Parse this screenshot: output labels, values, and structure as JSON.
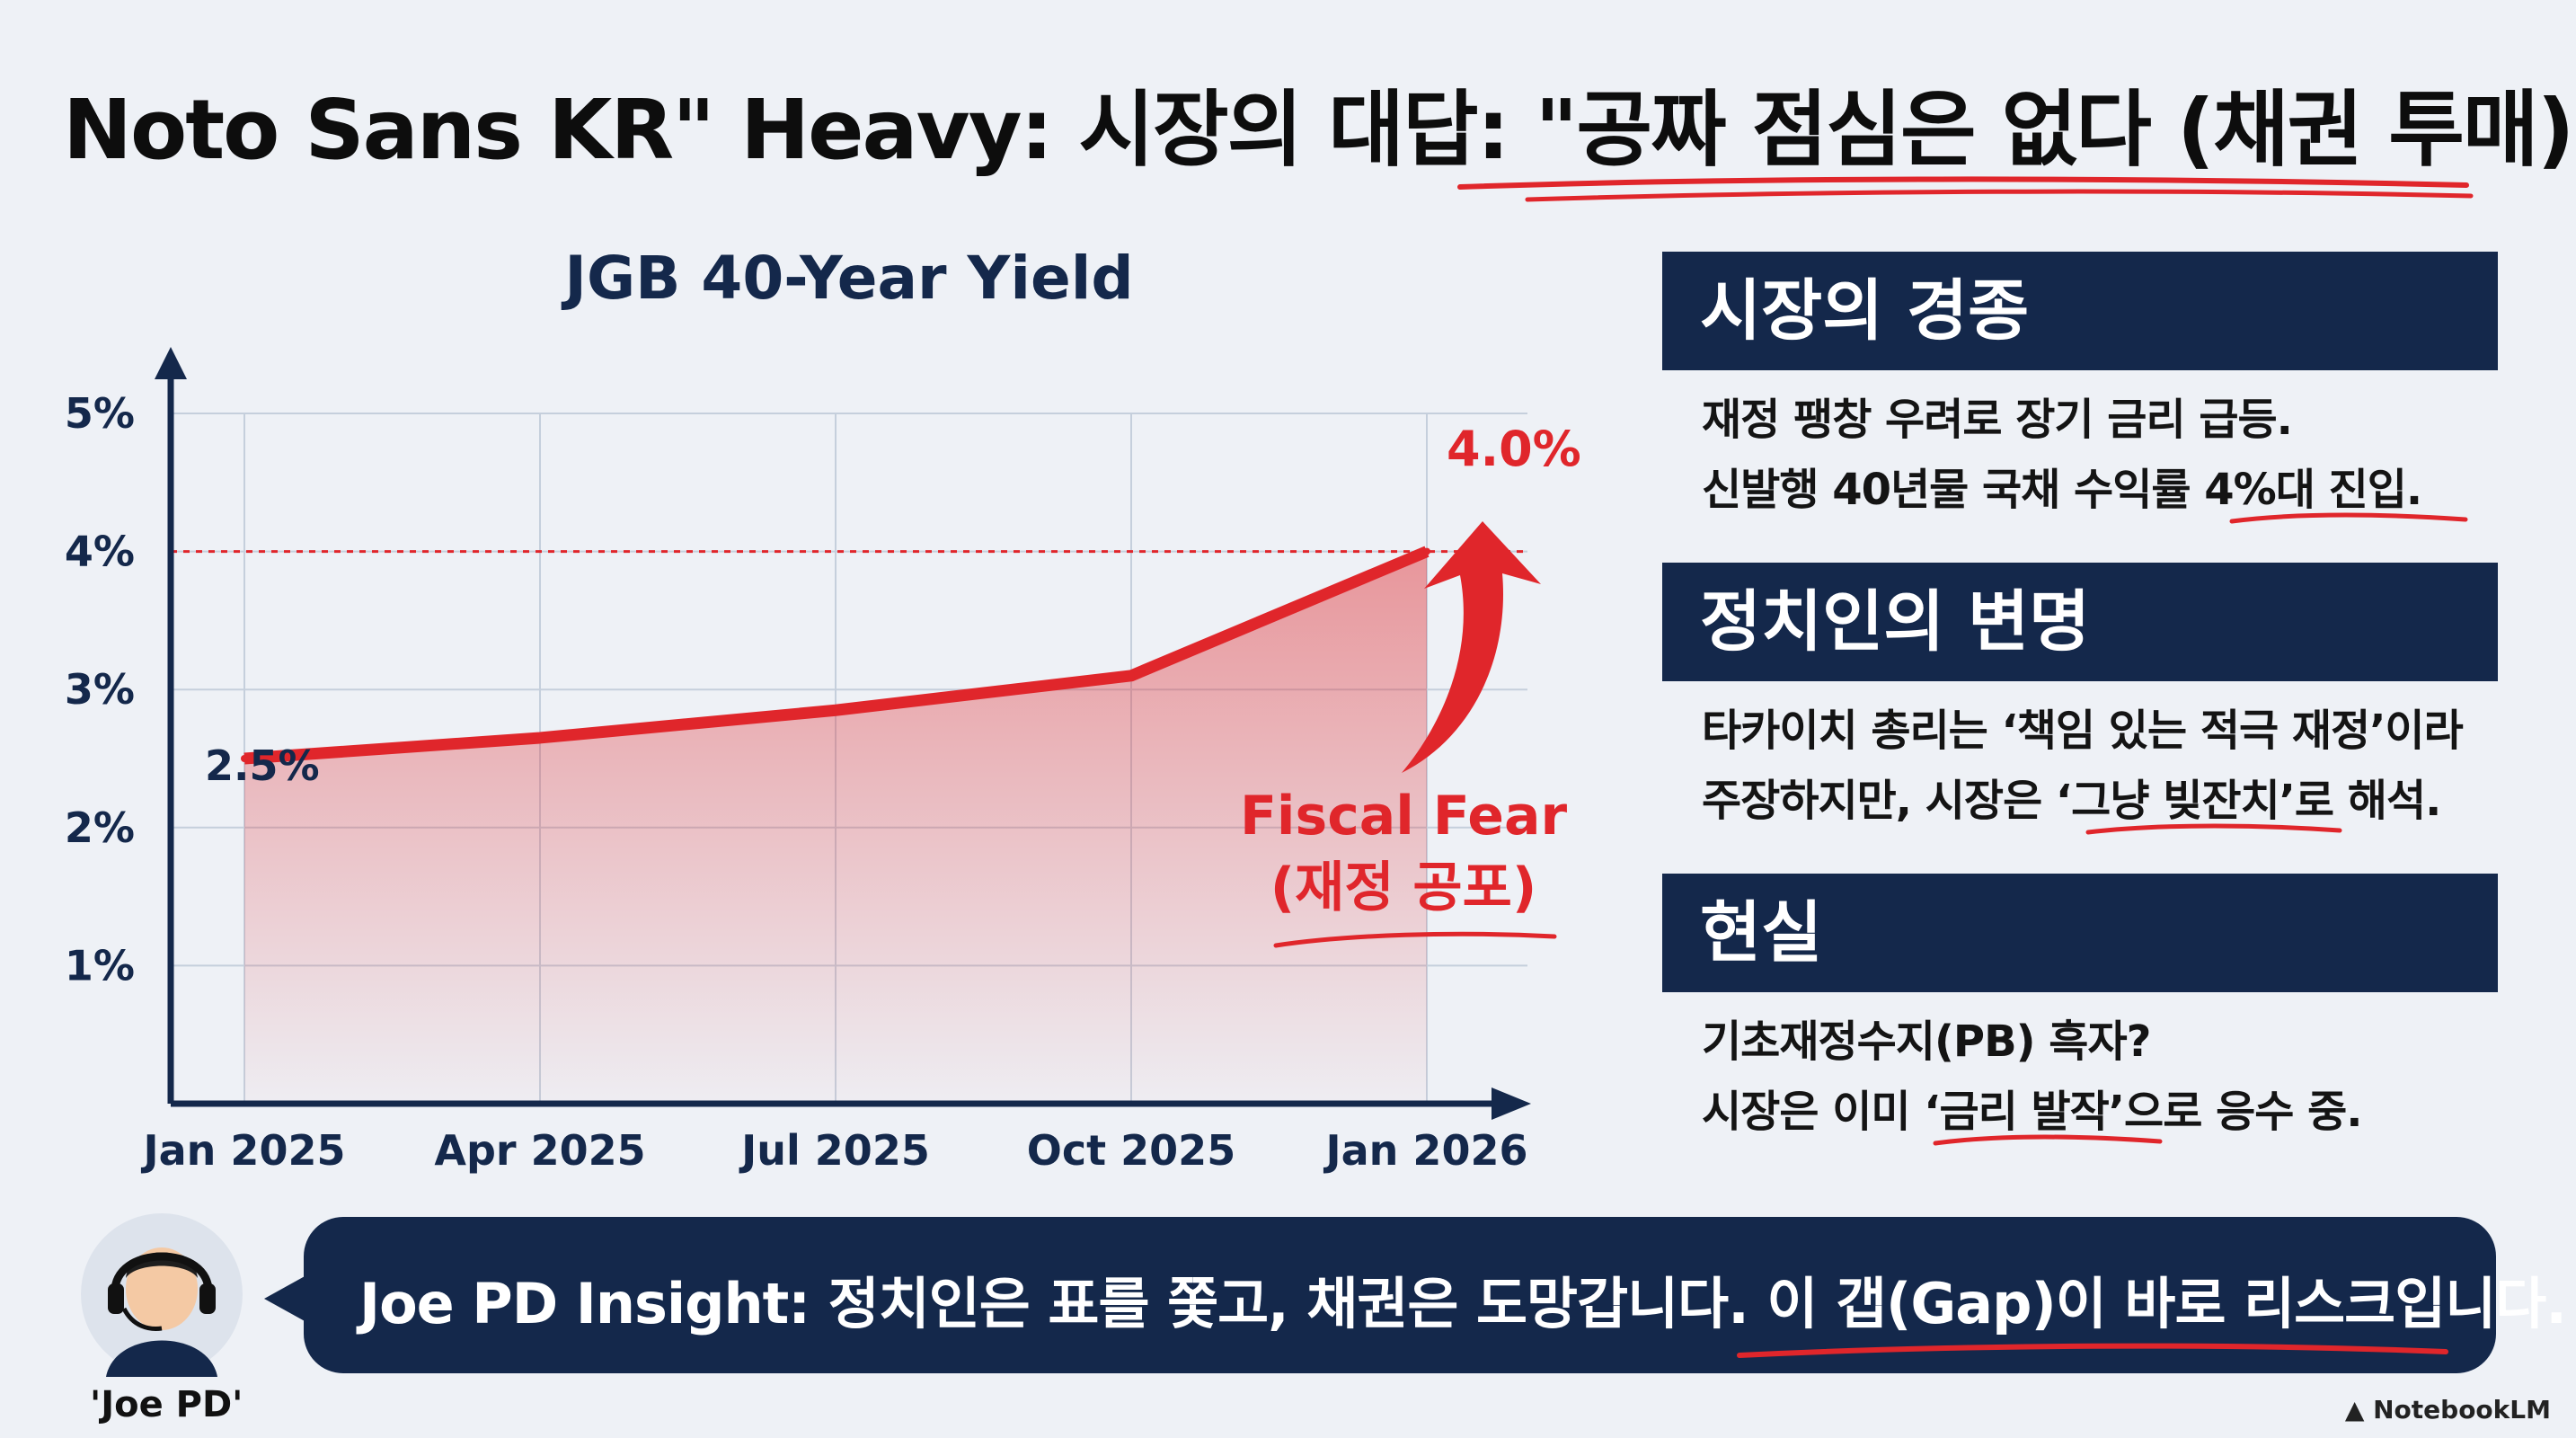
{
  "title": "Noto Sans KR\" Heavy: 시장의 대답: \"공짜 점심은 없다 (채권 투매)\"",
  "chart_data": {
    "type": "line",
    "title": "JGB 40-Year Yield",
    "categories": [
      "Jan 2025",
      "Apr 2025",
      "Jul 2025",
      "Oct 2025",
      "Jan 2026"
    ],
    "x": [
      0,
      3,
      6,
      9,
      12
    ],
    "series": [
      {
        "name": "JGB 40-Year Yield",
        "x": [
          0,
          3,
          6,
          9,
          12
        ],
        "values": [
          2.5,
          2.65,
          2.85,
          3.1,
          4.0
        ]
      }
    ],
    "ylim": [
      0,
      5
    ],
    "yticks": [
      1,
      2,
      3,
      4,
      5
    ],
    "ytick_labels": [
      "1%",
      "2%",
      "3%",
      "4%",
      "5%"
    ],
    "reference_line": 4.0,
    "annotations": {
      "start_label": "2.5%",
      "end_label": "4.0%",
      "fear_line1": "Fiscal Fear",
      "fear_line2": "(재정 공포)"
    },
    "grid": true,
    "xlabel": "",
    "ylabel": ""
  },
  "panels": [
    {
      "heading": "시장의 경종",
      "lines": [
        "재정 팽창 우려로 장기 금리 급등.",
        "신발행 40년물 국채 수익률 4%대 진입."
      ]
    },
    {
      "heading": "정치인의 변명",
      "lines": [
        "타카이치 총리는 ‘책임 있는 적극 재정’이라",
        "주장하지만, 시장은 ‘그냥 빚잔치’로 해석."
      ]
    },
    {
      "heading": "현실",
      "lines": [
        "기초재정수지(PB) 흑자?",
        "시장은 이미 ‘금리 발작’으로 응수 중."
      ]
    }
  ],
  "insight": "Joe PD Insight: 정치인은 표를 쫓고, 채권은 도망갑니다. 이 갭(Gap)이 바로 리스크입니다.",
  "avatar_label": "'Joe PD'",
  "brand": "NotebookLM",
  "colors": {
    "navy": "#14284b",
    "red": "#e0262b",
    "grid": "#c5cfdc",
    "axis": "#14284b"
  }
}
